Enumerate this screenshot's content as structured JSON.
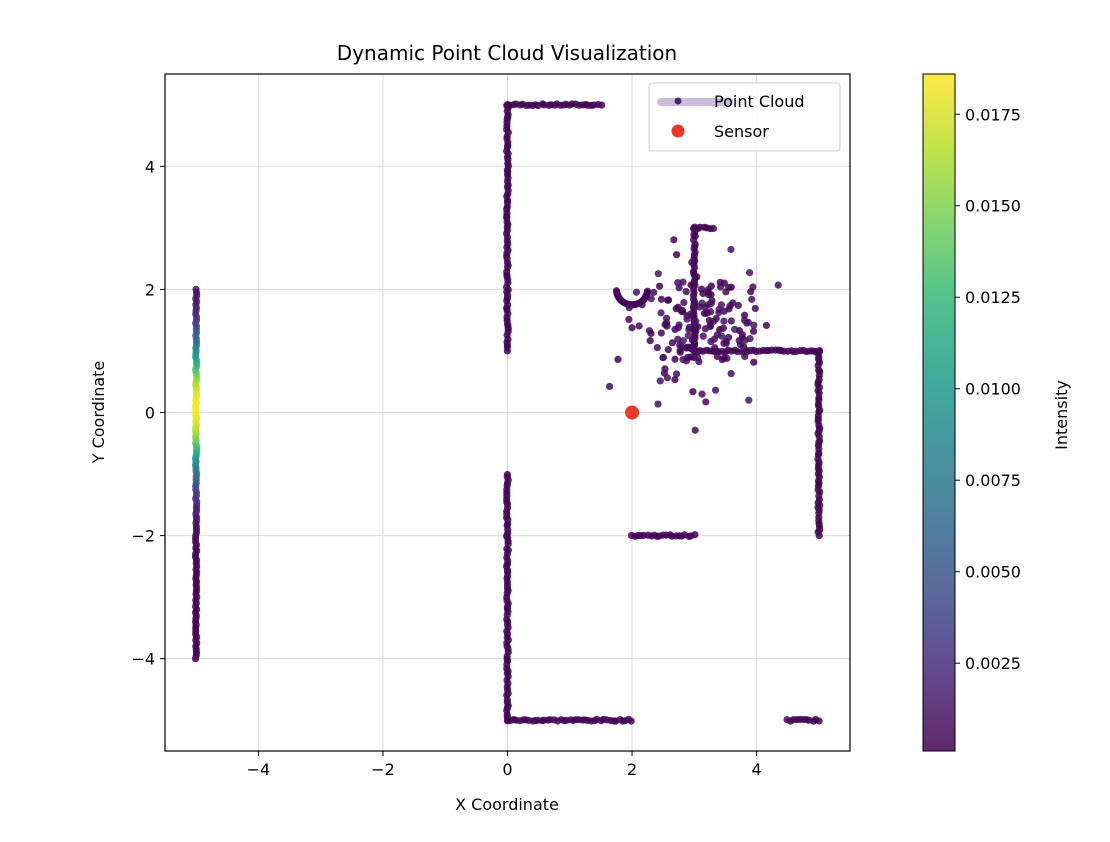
{
  "chart_data": {
    "type": "scatter",
    "title": "Dynamic Point Cloud Visualization",
    "xlabel": "X Coordinate",
    "ylabel": "Y Coordinate",
    "xlim": [
      -5.5,
      5.5
    ],
    "ylim": [
      -5.5,
      5.5
    ],
    "xticks": [
      -4,
      -2,
      0,
      2,
      4
    ],
    "yticks": [
      -4,
      -2,
      0,
      2,
      4
    ],
    "grid": true,
    "legend_placement": "top-right",
    "colormap": "viridis",
    "colorbar": {
      "label": "Intensity",
      "range": [
        0.0001,
        0.0186
      ],
      "ticks": [
        0.0025,
        0.005,
        0.0075,
        0.01,
        0.0125,
        0.015,
        0.0175
      ],
      "tick_labels": [
        "0.0025",
        "0.0050",
        "0.0075",
        "0.0100",
        "0.0125",
        "0.0150",
        "0.0175"
      ]
    },
    "series": [
      {
        "name": "Point Cloud",
        "kind": "point-cloud",
        "default_intensity": 0.0002,
        "segments": [
          {
            "from": [
              0,
              5
            ],
            "to": [
              1.5,
              5
            ]
          },
          {
            "from": [
              0,
              1
            ],
            "to": [
              0,
              5
            ]
          },
          {
            "from": [
              0,
              -5
            ],
            "to": [
              0,
              -1
            ]
          },
          {
            "from": [
              0,
              -5
            ],
            "to": [
              2,
              -5
            ]
          },
          {
            "from": [
              2,
              -2
            ],
            "to": [
              3,
              -2
            ]
          },
          {
            "from": [
              3,
              1
            ],
            "to": [
              3,
              3
            ]
          },
          {
            "from": [
              3,
              3
            ],
            "to": [
              3.3,
              3
            ]
          },
          {
            "from": [
              3,
              1
            ],
            "to": [
              5,
              1
            ]
          },
          {
            "from": [
              5,
              -2
            ],
            "to": [
              5,
              1
            ]
          },
          {
            "from": [
              4.5,
              -5
            ],
            "to": [
              5,
              -5
            ]
          }
        ],
        "arc": {
          "center": [
            2,
            2
          ],
          "radius": 0.25,
          "angle_range_deg": [
            185,
            355
          ]
        },
        "intensity_wall": {
          "x": -5,
          "y_range": [
            -4,
            2
          ],
          "peak_y": 0.1,
          "peak_intensity": 0.0185,
          "sigma": 0.75
        },
        "cluster": {
          "center": [
            3.1,
            1.4
          ],
          "spread": [
            0.45,
            0.5
          ],
          "count": 180
        }
      },
      {
        "name": "Sensor",
        "kind": "marker",
        "x": 2,
        "y": 0,
        "color": "#e8392a"
      }
    ]
  }
}
